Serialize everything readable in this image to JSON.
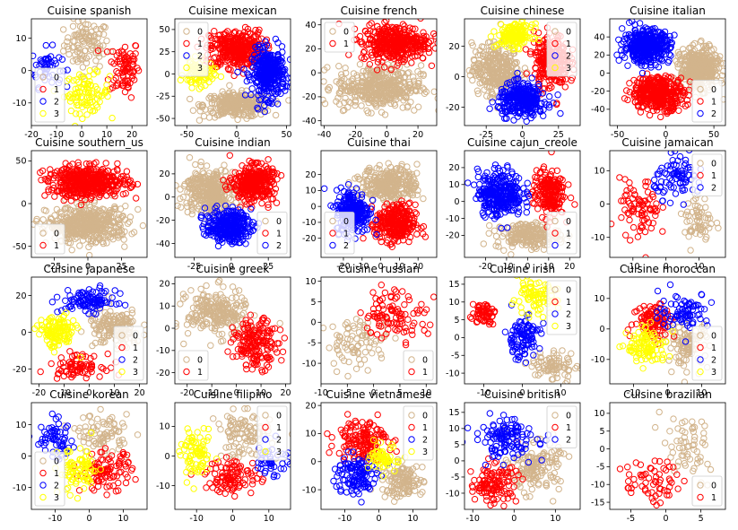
{
  "colors": {
    "0": "#d2b48c",
    "1": "#ff0000",
    "2": "#0000ff",
    "3": "#ffff00"
  },
  "chart_data": [
    {
      "type": "scatter",
      "title": "Cuisine spanish",
      "xlim": [
        -20,
        26
      ],
      "ylim": [
        -17,
        16
      ],
      "xticks": [
        -20,
        -10,
        0,
        10,
        20
      ],
      "yticks": [
        -10,
        0,
        10
      ],
      "legend": {
        "position": "lower-left",
        "entries": [
          "0",
          "1",
          "2",
          "3"
        ]
      },
      "series": [
        {
          "name": "0",
          "cx": 2,
          "cy": 8,
          "sx": 6,
          "sy": 5,
          "n": 100
        },
        {
          "name": "1",
          "cx": 17,
          "cy": 1,
          "sx": 4,
          "sy": 6,
          "n": 80
        },
        {
          "name": "2",
          "cx": -14,
          "cy": 1,
          "sx": 4,
          "sy": 4,
          "n": 50
        },
        {
          "name": "3",
          "cx": 2,
          "cy": -7,
          "sx": 6,
          "sy": 4,
          "n": 90
        }
      ]
    },
    {
      "type": "scatter",
      "title": "Cuisine mexican",
      "xlim": [
        -62,
        54
      ],
      "ylim": [
        -58,
        62
      ],
      "xticks": [
        -50,
        0,
        50
      ],
      "yticks": [
        -50,
        -25,
        0,
        25,
        50
      ],
      "legend": {
        "position": "top-left",
        "entries": [
          "0",
          "1",
          "2",
          "3"
        ]
      },
      "series": [
        {
          "name": "0",
          "cx": 0,
          "cy": -35,
          "sx": 22,
          "sy": 9,
          "n": 300
        },
        {
          "name": "1",
          "cx": 0,
          "cy": 28,
          "sx": 18,
          "sy": 14,
          "n": 350
        },
        {
          "name": "2",
          "cx": 32,
          "cy": 0,
          "sx": 11,
          "sy": 18,
          "n": 350
        },
        {
          "name": "3",
          "cx": -38,
          "cy": 0,
          "sx": 10,
          "sy": 10,
          "n": 80
        }
      ]
    },
    {
      "type": "scatter",
      "title": "Cuisine french",
      "xlim": [
        -42,
        32
      ],
      "ylim": [
        -44,
        45
      ],
      "xticks": [
        -40,
        -20,
        0,
        20
      ],
      "yticks": [
        -40,
        -20,
        0,
        20,
        40
      ],
      "legend": {
        "position": "top-left",
        "entries": [
          "0",
          "1"
        ]
      },
      "series": [
        {
          "name": "0",
          "cx": -5,
          "cy": -12,
          "sx": 18,
          "sy": 12,
          "n": 400
        },
        {
          "name": "1",
          "cx": 5,
          "cy": 25,
          "sx": 14,
          "sy": 10,
          "n": 400
        }
      ]
    },
    {
      "type": "scatter",
      "title": "Cuisine chinese",
      "xlim": [
        -40,
        40
      ],
      "ylim": [
        -32,
        38
      ],
      "xticks": [
        -25,
        0,
        25
      ],
      "yticks": [
        -20,
        0,
        20
      ],
      "legend": {
        "position": "top-right",
        "entries": [
          "0",
          "1",
          "2",
          "3"
        ]
      },
      "series": [
        {
          "name": "0",
          "cx": -18,
          "cy": 5,
          "sx": 11,
          "sy": 11,
          "n": 300
        },
        {
          "name": "1",
          "cx": 20,
          "cy": 10,
          "sx": 8,
          "sy": 12,
          "n": 250
        },
        {
          "name": "2",
          "cx": 0,
          "cy": -15,
          "sx": 11,
          "sy": 7,
          "n": 300
        },
        {
          "name": "3",
          "cx": -5,
          "cy": 27,
          "sx": 8,
          "sy": 5,
          "n": 150
        }
      ]
    },
    {
      "type": "scatter",
      "title": "Cuisine italian",
      "xlim": [
        -58,
        62
      ],
      "ylim": [
        -58,
        60
      ],
      "xticks": [
        -50,
        0,
        50
      ],
      "yticks": [
        -40,
        -20,
        0,
        20,
        40
      ],
      "legend": {
        "position": "lower-right",
        "entries": [
          "0",
          "1",
          "2"
        ]
      },
      "series": [
        {
          "name": "0",
          "cx": 35,
          "cy": 5,
          "sx": 13,
          "sy": 15,
          "n": 400
        },
        {
          "name": "1",
          "cx": -8,
          "cy": -22,
          "sx": 18,
          "sy": 12,
          "n": 400
        },
        {
          "name": "2",
          "cx": -20,
          "cy": 30,
          "sx": 16,
          "sy": 12,
          "n": 400
        }
      ]
    },
    {
      "type": "scatter",
      "title": "Cuisine southern_us",
      "xlim": [
        -42,
        44
      ],
      "ylim": [
        -63,
        62
      ],
      "xticks": [
        -25,
        0,
        25
      ],
      "yticks": [
        -50,
        0,
        50
      ],
      "legend": {
        "position": "lower-left",
        "entries": [
          "0",
          "1"
        ]
      },
      "series": [
        {
          "name": "0",
          "cx": 0,
          "cy": -25,
          "sx": 20,
          "sy": 14,
          "n": 450
        },
        {
          "name": "1",
          "cx": 0,
          "cy": 25,
          "sx": 20,
          "sy": 12,
          "n": 450
        }
      ]
    },
    {
      "type": "scatter",
      "title": "Cuisine indian",
      "xlim": [
        -38,
        40
      ],
      "ylim": [
        -52,
        40
      ],
      "xticks": [
        -25,
        0,
        25
      ],
      "yticks": [
        -40,
        -20,
        0,
        20
      ],
      "legend": {
        "position": "lower-right",
        "entries": [
          "0",
          "1",
          "2"
        ]
      },
      "series": [
        {
          "name": "0",
          "cx": -15,
          "cy": 5,
          "sx": 11,
          "sy": 13,
          "n": 350
        },
        {
          "name": "1",
          "cx": 15,
          "cy": 12,
          "sx": 9,
          "sy": 10,
          "n": 350
        },
        {
          "name": "2",
          "cx": -2,
          "cy": -25,
          "sx": 10,
          "sy": 9,
          "n": 300
        }
      ]
    },
    {
      "type": "scatter",
      "title": "Cuisine thai",
      "xlim": [
        -32,
        30
      ],
      "ylim": [
        -32,
        35
      ],
      "xticks": [
        -20,
        -10,
        0,
        10,
        20
      ],
      "yticks": [
        -20,
        -10,
        0,
        10,
        20
      ],
      "legend": {
        "position": "lower-left",
        "entries": [
          "0",
          "1",
          "2"
        ]
      },
      "series": [
        {
          "name": "0",
          "cx": 5,
          "cy": 14,
          "sx": 10,
          "sy": 7,
          "n": 300
        },
        {
          "name": "1",
          "cx": 8,
          "cy": -11,
          "sx": 7,
          "sy": 8,
          "n": 300
        },
        {
          "name": "2",
          "cx": -15,
          "cy": -3,
          "sx": 6,
          "sy": 9,
          "n": 250
        }
      ]
    },
    {
      "type": "scatter",
      "title": "Cuisine cajun_creole",
      "xlim": [
        -30,
        25
      ],
      "ylim": [
        -33,
        30
      ],
      "xticks": [
        -20,
        -10,
        0,
        10,
        20
      ],
      "yticks": [
        -20,
        -10,
        0,
        10,
        20
      ],
      "legend": {
        "position": "lower-right",
        "entries": [
          "0",
          "1",
          "2"
        ]
      },
      "series": [
        {
          "name": "0",
          "cx": 0,
          "cy": -20,
          "sx": 10,
          "sy": 5,
          "n": 200
        },
        {
          "name": "1",
          "cx": 10,
          "cy": 5,
          "sx": 5,
          "sy": 9,
          "n": 200
        },
        {
          "name": "2",
          "cx": -13,
          "cy": 5,
          "sx": 7,
          "sy": 9,
          "n": 300
        }
      ]
    },
    {
      "type": "scatter",
      "title": "Cuisine jamaican",
      "xlim": [
        -17,
        18
      ],
      "ylim": [
        -16,
        16
      ],
      "xticks": [
        -10,
        0,
        10
      ],
      "yticks": [
        -10,
        0,
        10
      ],
      "legend": {
        "position": "top-right",
        "entries": [
          "0",
          "1",
          "2"
        ]
      },
      "series": [
        {
          "name": "0",
          "cx": 10,
          "cy": -5,
          "sx": 3,
          "sy": 5,
          "n": 60
        },
        {
          "name": "1",
          "cx": -8,
          "cy": -2,
          "sx": 4,
          "sy": 6,
          "n": 80
        },
        {
          "name": "2",
          "cx": 4,
          "cy": 8,
          "sx": 5,
          "sy": 4,
          "n": 80
        }
      ]
    },
    {
      "type": "scatter",
      "title": "Cuisine japanese",
      "xlim": [
        -23,
        23
      ],
      "ylim": [
        -28,
        30
      ],
      "xticks": [
        -20,
        -10,
        0,
        10,
        20
      ],
      "yticks": [
        -20,
        0,
        20
      ],
      "legend": {
        "position": "lower-right",
        "entries": [
          "0",
          "1",
          "2",
          "3"
        ]
      },
      "series": [
        {
          "name": "0",
          "cx": 10,
          "cy": 2,
          "sx": 7,
          "sy": 7,
          "n": 150
        },
        {
          "name": "1",
          "cx": -5,
          "cy": -18,
          "sx": 7,
          "sy": 4,
          "n": 80
        },
        {
          "name": "2",
          "cx": 0,
          "cy": 17,
          "sx": 7,
          "sy": 4,
          "n": 100
        },
        {
          "name": "3",
          "cx": -13,
          "cy": 0,
          "sx": 5,
          "sy": 6,
          "n": 120
        }
      ]
    },
    {
      "type": "scatter",
      "title": "Cuisine greek",
      "xlim": [
        -25,
        22
      ],
      "ylim": [
        -25,
        23
      ],
      "xticks": [
        -20,
        -10,
        0,
        10,
        20
      ],
      "yticks": [
        -20,
        -10,
        0,
        10,
        20
      ],
      "legend": {
        "position": "lower-left",
        "entries": [
          "0",
          "1"
        ]
      },
      "series": [
        {
          "name": "0",
          "cx": -8,
          "cy": 7,
          "sx": 8,
          "sy": 7,
          "n": 220
        },
        {
          "name": "1",
          "cx": 8,
          "cy": -7,
          "sx": 6,
          "sy": 7,
          "n": 180
        }
      ]
    },
    {
      "type": "scatter",
      "title": "Cuisine russian",
      "xlim": [
        -10,
        12
      ],
      "ylim": [
        -15,
        11
      ],
      "xticks": [
        -10,
        -5,
        0,
        5,
        10
      ],
      "yticks": [
        -10,
        -5,
        0,
        5,
        10
      ],
      "legend": {
        "position": "lower-right",
        "entries": [
          "0",
          "1"
        ]
      },
      "series": [
        {
          "name": "0",
          "cx": -3,
          "cy": -5,
          "sx": 4,
          "sy": 4,
          "n": 80
        },
        {
          "name": "1",
          "cx": 4,
          "cy": 2,
          "sx": 4,
          "sy": 4,
          "n": 100
        }
      ]
    },
    {
      "type": "scatter",
      "title": "Cuisine irish",
      "xlim": [
        -15,
        15
      ],
      "ylim": [
        -13,
        17
      ],
      "xticks": [
        -10,
        0,
        10
      ],
      "yticks": [
        -10,
        -5,
        0,
        5,
        10,
        15
      ],
      "legend": {
        "position": "top-right",
        "entries": [
          "0",
          "1",
          "2",
          "3"
        ]
      },
      "series": [
        {
          "name": "0",
          "cx": 8,
          "cy": -8,
          "sx": 4,
          "sy": 3,
          "n": 80
        },
        {
          "name": "1",
          "cx": -10,
          "cy": 7,
          "sx": 2,
          "sy": 2,
          "n": 60
        },
        {
          "name": "2",
          "cx": 0,
          "cy": 0,
          "sx": 3,
          "sy": 4,
          "n": 100
        },
        {
          "name": "3",
          "cx": 3,
          "cy": 11,
          "sx": 4,
          "sy": 3,
          "n": 80
        }
      ]
    },
    {
      "type": "scatter",
      "title": "Cuisine moroccan",
      "xlim": [
        -17,
        17
      ],
      "ylim": [
        -18,
        17
      ],
      "xticks": [
        -10,
        0,
        10
      ],
      "yticks": [
        -10,
        0,
        10
      ],
      "legend": {
        "position": "lower-right",
        "entries": [
          "0",
          "1",
          "2",
          "3"
        ]
      },
      "series": [
        {
          "name": "0",
          "cx": 6,
          "cy": -5,
          "sx": 4,
          "sy": 5,
          "n": 100
        },
        {
          "name": "1",
          "cx": -4,
          "cy": 3,
          "sx": 4,
          "sy": 4,
          "n": 100
        },
        {
          "name": "2",
          "cx": 5,
          "cy": 6,
          "sx": 5,
          "sy": 4,
          "n": 80
        },
        {
          "name": "3",
          "cx": -6,
          "cy": -6,
          "sx": 4,
          "sy": 4,
          "n": 100
        }
      ]
    },
    {
      "type": "scatter",
      "title": "Cuisine korean",
      "xlim": [
        -17,
        17
      ],
      "ylim": [
        -17,
        17
      ],
      "xticks": [
        -10,
        0,
        10
      ],
      "yticks": [
        -10,
        0,
        10
      ],
      "legend": {
        "position": "lower-left",
        "entries": [
          "0",
          "1",
          "2",
          "3"
        ]
      },
      "series": [
        {
          "name": "0",
          "cx": 4,
          "cy": 7,
          "sx": 5,
          "sy": 4,
          "n": 80
        },
        {
          "name": "1",
          "cx": 5,
          "cy": -5,
          "sx": 5,
          "sy": 4,
          "n": 100
        },
        {
          "name": "2",
          "cx": -10,
          "cy": 5,
          "sx": 4,
          "sy": 4,
          "n": 60
        },
        {
          "name": "3",
          "cx": -3,
          "cy": -5,
          "sx": 4,
          "sy": 5,
          "n": 80
        }
      ]
    },
    {
      "type": "scatter",
      "title": "Cuisine filipino",
      "xlim": [
        -16,
        16
      ],
      "ylim": [
        -18,
        18
      ],
      "xticks": [
        -10,
        0,
        10
      ],
      "yticks": [
        -10,
        0,
        10
      ],
      "legend": {
        "position": "top-right",
        "entries": [
          "0",
          "1",
          "2",
          "3"
        ]
      },
      "series": [
        {
          "name": "0",
          "cx": 3,
          "cy": 7,
          "sx": 5,
          "sy": 5,
          "n": 100
        },
        {
          "name": "1",
          "cx": 0,
          "cy": -7,
          "sx": 5,
          "sy": 4,
          "n": 100
        },
        {
          "name": "2",
          "cx": 11,
          "cy": -1,
          "sx": 3,
          "sy": 4,
          "n": 40
        },
        {
          "name": "3",
          "cx": -10,
          "cy": 0,
          "sx": 3,
          "sy": 5,
          "n": 80
        }
      ]
    },
    {
      "type": "scatter",
      "title": "Cuisine vietnamese",
      "xlim": [
        -17,
        17
      ],
      "ylim": [
        -17,
        21
      ],
      "xticks": [
        -10,
        0,
        10
      ],
      "yticks": [
        -10,
        0,
        10,
        20
      ],
      "legend": {
        "position": "top-right",
        "entries": [
          "0",
          "1",
          "2",
          "3"
        ]
      },
      "series": [
        {
          "name": "0",
          "cx": 7,
          "cy": -7,
          "sx": 4,
          "sy": 4,
          "n": 120
        },
        {
          "name": "1",
          "cx": -5,
          "cy": 8,
          "sx": 5,
          "sy": 5,
          "n": 150
        },
        {
          "name": "2",
          "cx": -7,
          "cy": -5,
          "sx": 4,
          "sy": 5,
          "n": 120
        },
        {
          "name": "3",
          "cx": 2,
          "cy": 1,
          "sx": 3,
          "sy": 3,
          "n": 60
        }
      ]
    },
    {
      "type": "scatter",
      "title": "Cuisine british",
      "xlim": [
        -12,
        16
      ],
      "ylim": [
        -15,
        18
      ],
      "xticks": [
        -10,
        0,
        10
      ],
      "yticks": [
        -10,
        -5,
        0,
        5,
        10,
        15
      ],
      "legend": {
        "position": "top-right",
        "entries": [
          "0",
          "1",
          "2"
        ]
      },
      "series": [
        {
          "name": "0",
          "cx": 5,
          "cy": -2,
          "sx": 4,
          "sy": 5,
          "n": 150
        },
        {
          "name": "1",
          "cx": -5,
          "cy": -7,
          "sx": 4,
          "sy": 4,
          "n": 120
        },
        {
          "name": "2",
          "cx": -2,
          "cy": 7,
          "sx": 5,
          "sy": 4,
          "n": 120
        }
      ]
    },
    {
      "type": "scatter",
      "title": "Cuisine brazilian",
      "xlim": [
        -8,
        8.5
      ],
      "ylim": [
        -17,
        13
      ],
      "xticks": [
        -5,
        0,
        5
      ],
      "yticks": [
        -15,
        -10,
        -5,
        0,
        5,
        10
      ],
      "legend": {
        "position": "lower-right",
        "entries": [
          "0",
          "1"
        ]
      },
      "series": [
        {
          "name": "0",
          "cx": 3,
          "cy": 0,
          "sx": 2.5,
          "sy": 6,
          "n": 60
        },
        {
          "name": "1",
          "cx": -2,
          "cy": -9,
          "sx": 2.5,
          "sy": 4,
          "n": 60
        }
      ]
    }
  ]
}
